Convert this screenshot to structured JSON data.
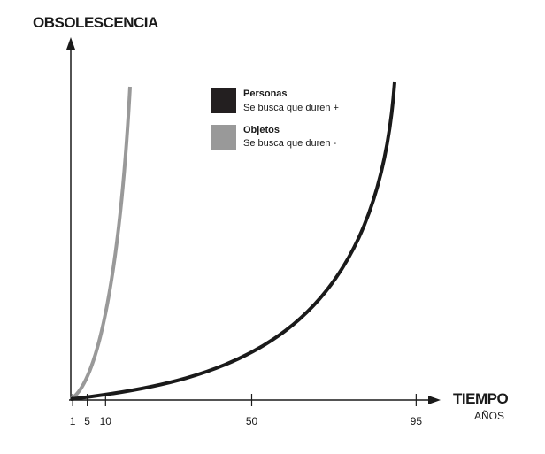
{
  "y_axis": {
    "label": "OBSOLESCENCIA"
  },
  "x_axis": {
    "label": "TIEMPO",
    "unit": "AÑOS",
    "ticks": [
      1,
      5,
      10,
      50,
      95
    ]
  },
  "legend": [
    {
      "title": "Personas",
      "text": "Se busca que duren +"
    },
    {
      "title": "Objetos",
      "text": "Se busca que duren -"
    }
  ]
}
